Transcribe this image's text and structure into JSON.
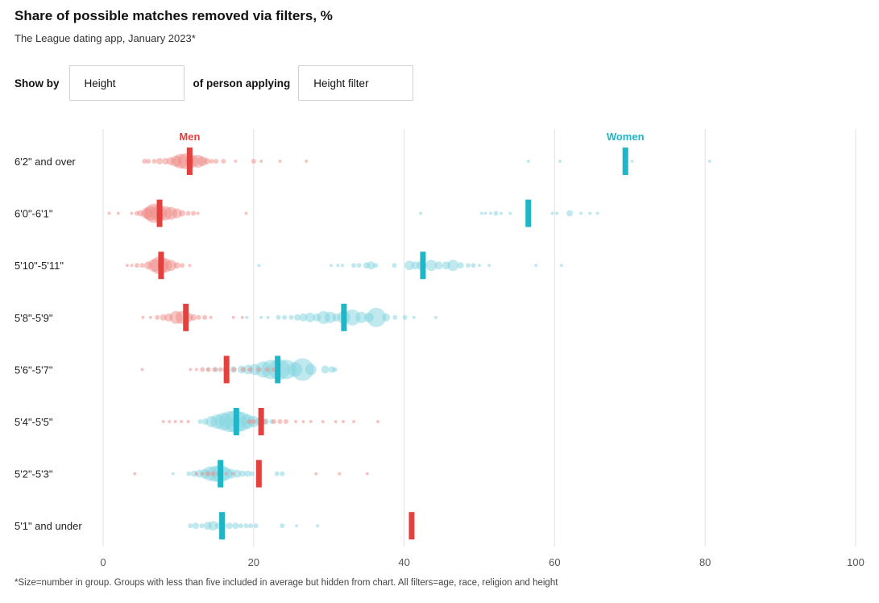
{
  "title": "Share of possible matches removed via filters, %",
  "subtitle": "The League dating app, January 2023*",
  "controls": {
    "show_by_label": "Show by",
    "show_by_value": "Height",
    "middle_label": "of person applying",
    "filter_value": "Height filter"
  },
  "footnote": "*Size=number in group. Groups with less than five included in average but hidden from chart. All filters=age, race, religion and height",
  "colors": {
    "men": "#e3413e",
    "men_dot": "#f08a86",
    "women": "#1fb6c8",
    "women_dot": "#7fd3dd",
    "grid": "#e2e2e2"
  },
  "chart_data": {
    "type": "scatter",
    "series_labels": {
      "men": "Men",
      "women": "Women"
    },
    "xlim": [
      0,
      100
    ],
    "x_ticks": [
      0,
      20,
      40,
      60,
      80,
      100
    ],
    "grid": true,
    "categories": [
      "6'2\" and over",
      "6'0\"-6'1\"",
      "5'10\"-5'11\"",
      "5'8\"-5'9\"",
      "5'6\"-5'7\"",
      "5'4\"-5'5\"",
      "5'2\"-5'3\"",
      "5'1\" and under"
    ],
    "averages": {
      "men": [
        11.5,
        7.5,
        7.7,
        11.0,
        16.4,
        21.0,
        20.7,
        41.0
      ],
      "women": [
        69.4,
        56.5,
        42.5,
        32.0,
        23.2,
        17.7,
        15.6,
        15.8
      ]
    },
    "points": {
      "men": [
        [
          [
            5.5,
            3
          ],
          [
            6,
            3
          ],
          [
            6.8,
            3
          ],
          [
            7.5,
            4
          ],
          [
            8.3,
            4
          ],
          [
            9,
            5
          ],
          [
            9.7,
            7
          ],
          [
            10.3,
            9
          ],
          [
            11,
            10
          ],
          [
            11.8,
            8
          ],
          [
            12.6,
            8
          ],
          [
            13.2,
            6
          ],
          [
            13.8,
            4
          ],
          [
            14.4,
            3
          ],
          [
            15,
            3
          ],
          [
            16,
            3
          ],
          [
            17.6,
            2
          ],
          [
            20,
            3
          ],
          [
            21,
            2
          ],
          [
            23.5,
            2
          ],
          [
            27,
            2
          ]
        ],
        [
          [
            0.8,
            2
          ],
          [
            2,
            2
          ],
          [
            3.8,
            2
          ],
          [
            4.5,
            3
          ],
          [
            5,
            4
          ],
          [
            5.8,
            7
          ],
          [
            6.3,
            9
          ],
          [
            6.8,
            12
          ],
          [
            7.4,
            10
          ],
          [
            8.2,
            9
          ],
          [
            9,
            8
          ],
          [
            9.8,
            6
          ],
          [
            10.5,
            4
          ],
          [
            11.3,
            3
          ],
          [
            12,
            3
          ],
          [
            12.6,
            2
          ],
          [
            19,
            2
          ]
        ],
        [
          [
            3.2,
            2
          ],
          [
            3.8,
            2
          ],
          [
            4.5,
            3
          ],
          [
            5.2,
            3
          ],
          [
            6,
            5
          ],
          [
            6.8,
            8
          ],
          [
            7.5,
            11
          ],
          [
            8.2,
            9
          ],
          [
            9,
            7
          ],
          [
            9.8,
            4
          ],
          [
            10.5,
            3
          ],
          [
            11.5,
            2
          ]
        ],
        [
          [
            5.3,
            2
          ],
          [
            6.3,
            2
          ],
          [
            7.2,
            3
          ],
          [
            8,
            4
          ],
          [
            8.7,
            5
          ],
          [
            9.7,
            8
          ],
          [
            10.5,
            8
          ],
          [
            11.3,
            6
          ],
          [
            12,
            4
          ],
          [
            12.7,
            3
          ],
          [
            13.5,
            3
          ],
          [
            14.3,
            2
          ],
          [
            17.3,
            2
          ],
          [
            18.5,
            2
          ]
        ],
        [
          [
            5.2,
            2
          ],
          [
            11.6,
            2
          ],
          [
            12.4,
            2
          ],
          [
            13.2,
            3
          ],
          [
            14,
            3
          ],
          [
            14.8,
            3
          ],
          [
            15.6,
            3
          ],
          [
            16.4,
            3
          ],
          [
            17.4,
            3
          ],
          [
            18.6,
            3
          ],
          [
            19.5,
            3
          ],
          [
            20.7,
            3
          ],
          [
            21.8,
            3
          ],
          [
            22.7,
            3
          ]
        ],
        [
          [
            8,
            2
          ],
          [
            8.8,
            2
          ],
          [
            9.6,
            2
          ],
          [
            10.4,
            2
          ],
          [
            11.3,
            2
          ],
          [
            19.4,
            3
          ],
          [
            20,
            3
          ],
          [
            21.5,
            3
          ],
          [
            22.7,
            3
          ],
          [
            23.5,
            3
          ],
          [
            24.3,
            3
          ],
          [
            25.6,
            2
          ],
          [
            26.6,
            2
          ],
          [
            27.6,
            2
          ],
          [
            29.2,
            2
          ],
          [
            30.9,
            2
          ],
          [
            31.9,
            2
          ],
          [
            33.3,
            2
          ],
          [
            36.5,
            2
          ]
        ],
        [
          [
            4.2,
            2
          ],
          [
            12.4,
            2
          ],
          [
            13.2,
            2
          ],
          [
            13.9,
            3
          ],
          [
            14.6,
            3
          ],
          [
            15.4,
            3
          ],
          [
            16.3,
            2
          ],
          [
            17.2,
            2
          ],
          [
            28.3,
            2
          ],
          [
            31.4,
            2
          ],
          [
            35.1,
            2
          ]
        ],
        []
      ],
      "women": [
        [
          [
            56.5,
            2
          ],
          [
            60.7,
            2
          ],
          [
            70.3,
            2
          ],
          [
            80.6,
            2
          ]
        ],
        [
          [
            42.2,
            2
          ],
          [
            50.3,
            2
          ],
          [
            50.8,
            2
          ],
          [
            51.5,
            2
          ],
          [
            52.2,
            3
          ],
          [
            52.9,
            2
          ],
          [
            54.1,
            2
          ],
          [
            59.7,
            2
          ],
          [
            60.3,
            2
          ],
          [
            62,
            4
          ],
          [
            63.5,
            2
          ],
          [
            64.7,
            2
          ],
          [
            65.7,
            2
          ]
        ],
        [
          [
            20.7,
            2
          ],
          [
            30.3,
            2
          ],
          [
            31.2,
            2
          ],
          [
            31.8,
            2
          ],
          [
            33.3,
            3
          ],
          [
            34,
            3
          ],
          [
            35,
            4
          ],
          [
            35.6,
            5
          ],
          [
            36.2,
            3
          ],
          [
            38.7,
            3
          ],
          [
            40.7,
            6
          ],
          [
            41.5,
            5
          ],
          [
            42.3,
            6
          ],
          [
            43.6,
            7
          ],
          [
            44.6,
            5
          ],
          [
            45.6,
            5
          ],
          [
            46.5,
            7
          ],
          [
            47.5,
            4
          ],
          [
            48.5,
            3
          ],
          [
            49.2,
            3
          ],
          [
            50,
            2
          ],
          [
            51.3,
            2
          ],
          [
            57.5,
            2
          ],
          [
            60.9,
            2
          ]
        ],
        [
          [
            19.1,
            2
          ],
          [
            21,
            2
          ],
          [
            21.9,
            2
          ],
          [
            23.3,
            3
          ],
          [
            24.1,
            3
          ],
          [
            25,
            3
          ],
          [
            25.8,
            4
          ],
          [
            26.6,
            5
          ],
          [
            27.5,
            6
          ],
          [
            28.4,
            5
          ],
          [
            29.3,
            8
          ],
          [
            30.2,
            7
          ],
          [
            31,
            5
          ],
          [
            32,
            8
          ],
          [
            33.1,
            10
          ],
          [
            34.3,
            7
          ],
          [
            35.3,
            6
          ],
          [
            36.3,
            12
          ],
          [
            37.6,
            5
          ],
          [
            38.8,
            3
          ],
          [
            40.1,
            3
          ],
          [
            41.3,
            2
          ],
          [
            44.2,
            2
          ]
        ],
        [
          [
            13.9,
            2
          ],
          [
            15,
            3
          ],
          [
            16.2,
            3
          ],
          [
            17.3,
            4
          ],
          [
            18.4,
            5
          ],
          [
            19.3,
            6
          ],
          [
            20.2,
            7
          ],
          [
            21.3,
            10
          ],
          [
            22.3,
            12
          ],
          [
            23.4,
            13
          ],
          [
            24.4,
            12
          ],
          [
            25.5,
            9
          ],
          [
            26.5,
            14
          ],
          [
            27.6,
            7
          ],
          [
            29.5,
            5
          ],
          [
            30.4,
            4
          ],
          [
            30.8,
            3
          ]
        ],
        [
          [
            12.9,
            3
          ],
          [
            13.6,
            4
          ],
          [
            14.4,
            7
          ],
          [
            15.2,
            9
          ],
          [
            16,
            11
          ],
          [
            16.8,
            13
          ],
          [
            17.6,
            14
          ],
          [
            18.4,
            12
          ],
          [
            19.2,
            9
          ],
          [
            20,
            7
          ],
          [
            20.8,
            5
          ],
          [
            21.6,
            4
          ],
          [
            22.4,
            3
          ]
        ],
        [
          [
            9.3,
            2
          ],
          [
            11.4,
            3
          ],
          [
            12.1,
            4
          ],
          [
            12.8,
            5
          ],
          [
            13.5,
            6
          ],
          [
            14.2,
            9
          ],
          [
            14.9,
            10
          ],
          [
            15.6,
            11
          ],
          [
            16.3,
            8
          ],
          [
            17,
            6
          ],
          [
            17.8,
            5
          ],
          [
            18.5,
            4
          ],
          [
            19.2,
            4
          ],
          [
            19.8,
            3
          ],
          [
            23.1,
            3
          ],
          [
            23.8,
            3
          ]
        ],
        [
          [
            11.6,
            3
          ],
          [
            12.3,
            4
          ],
          [
            13.1,
            3
          ],
          [
            13.9,
            5
          ],
          [
            14.6,
            6
          ],
          [
            15.3,
            4
          ],
          [
            16,
            4
          ],
          [
            16.8,
            4
          ],
          [
            17.6,
            4
          ],
          [
            18.3,
            3
          ],
          [
            19,
            3
          ],
          [
            19.6,
            3
          ],
          [
            20.3,
            3
          ],
          [
            23.8,
            3
          ],
          [
            25.7,
            2
          ],
          [
            28.5,
            2
          ]
        ]
      ]
    }
  }
}
